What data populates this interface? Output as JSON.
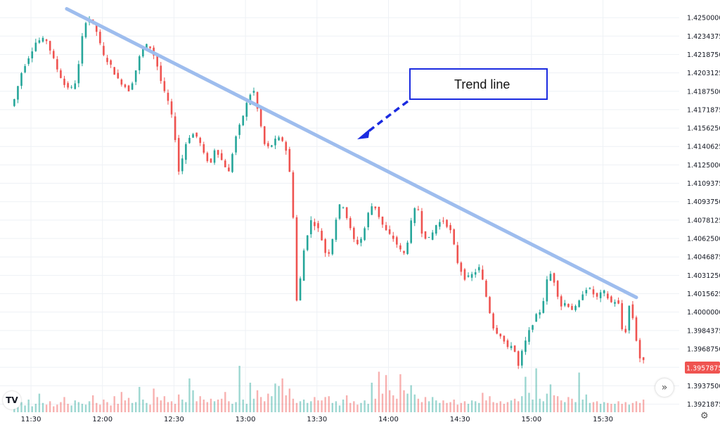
{
  "chart_data": {
    "type": "candlestick",
    "title": "",
    "annotation": {
      "label": "Trend line",
      "line_from": [
        "11:45",
        1.42575
      ],
      "line_to": [
        "15:44",
        1.40125
      ]
    },
    "colors": {
      "up": "#26a69a",
      "down": "#ef5350",
      "trendline": "#9ebdee",
      "annotation_border": "#1b2be0",
      "arrow": "#1b2be0",
      "grid": "#eef1f5",
      "price_badge": "#ef5350"
    },
    "x_axis": {
      "ticks": [
        "11:30",
        "12:00",
        "12:30",
        "13:00",
        "13:30",
        "14:00",
        "14:30",
        "15:00",
        "15:30"
      ]
    },
    "y_axis": {
      "ticks": [
        "1.4250000",
        "1.4234375",
        "1.4218750",
        "1.4203125",
        "1.4187500",
        "1.4171875",
        "1.4156250",
        "1.4140625",
        "1.4125000",
        "1.4109375",
        "1.4093750",
        "1.4078125",
        "1.4062500",
        "1.4046875",
        "1.4031250",
        "1.4015625",
        "1.4000000",
        "1.3984375",
        "1.3968750",
        "1.3953125",
        "1.3937500",
        "1.3921875"
      ],
      "range": [
        1.3915,
        1.4265
      ]
    },
    "last_price": "1.3957875",
    "x_range_minutes": [
      677,
      962
    ],
    "trend_segments": [
      [
        "11:23",
        1.4175
      ],
      [
        "11:27",
        1.4205
      ],
      [
        "11:33",
        1.423
      ],
      [
        "11:37",
        1.4232
      ],
      [
        "11:42",
        1.4205
      ],
      [
        "11:45",
        1.4192
      ],
      [
        "11:48",
        1.419
      ],
      [
        "11:50",
        1.4198
      ],
      [
        "11:53",
        1.4245
      ],
      [
        "11:55",
        1.425
      ],
      [
        "11:58",
        1.424
      ],
      [
        "12:01",
        1.4218
      ],
      [
        "12:04",
        1.421
      ],
      [
        "12:07",
        1.4198
      ],
      [
        "12:10",
        1.4192
      ],
      [
        "12:12",
        1.4188
      ],
      [
        "12:14",
        1.42
      ],
      [
        "12:17",
        1.4222
      ],
      [
        "12:20",
        1.4228
      ],
      [
        "12:23",
        1.4215
      ],
      [
        "12:26",
        1.419
      ],
      [
        "12:29",
        1.4175
      ],
      [
        "12:31",
        1.4152
      ],
      [
        "12:33",
        1.4115
      ],
      [
        "12:35",
        1.414
      ],
      [
        "12:38",
        1.4152
      ],
      [
        "12:41",
        1.4148
      ],
      [
        "12:43",
        1.4135
      ],
      [
        "12:46",
        1.4125
      ],
      [
        "12:48",
        1.414
      ],
      [
        "12:51",
        1.4128
      ],
      [
        "12:54",
        1.4118
      ],
      [
        "12:56",
        1.4145
      ],
      [
        "12:59",
        1.4162
      ],
      [
        "13:02",
        1.4182
      ],
      [
        "13:04",
        1.419
      ],
      [
        "13:06",
        1.417
      ],
      [
        "13:09",
        1.414
      ],
      [
        "13:11",
        1.414
      ],
      [
        "13:14",
        1.4148
      ],
      [
        "13:17",
        1.4145
      ],
      [
        "13:19",
        1.4125
      ],
      [
        "13:21",
        1.4075
      ],
      [
        "13:22",
        1.4008
      ],
      [
        "13:23",
        1.4015
      ],
      [
        "13:25",
        1.405
      ],
      [
        "13:28",
        1.4078
      ],
      [
        "13:31",
        1.4072
      ],
      [
        "13:33",
        1.406
      ],
      [
        "13:35",
        1.4045
      ],
      [
        "13:37",
        1.406
      ],
      [
        "13:39",
        1.4082
      ],
      [
        "13:41",
        1.4095
      ],
      [
        "13:43",
        1.4082
      ],
      [
        "13:46",
        1.4062
      ],
      [
        "13:48",
        1.4058
      ],
      [
        "13:50",
        1.4065
      ],
      [
        "13:53",
        1.409
      ],
      [
        "13:55",
        1.409
      ],
      [
        "13:58",
        1.4075
      ],
      [
        "14:00",
        1.4068
      ],
      [
        "14:03",
        1.4062
      ],
      [
        "14:05",
        1.4055
      ],
      [
        "14:07",
        1.4048
      ],
      [
        "14:09",
        1.4062
      ],
      [
        "14:11",
        1.4085
      ],
      [
        "14:13",
        1.409
      ],
      [
        "14:15",
        1.4065
      ],
      [
        "14:18",
        1.4062
      ],
      [
        "14:21",
        1.4075
      ],
      [
        "14:24",
        1.4078
      ],
      [
        "14:27",
        1.4068
      ],
      [
        "14:30",
        1.404
      ],
      [
        "14:33",
        1.4028
      ],
      [
        "14:36",
        1.4032
      ],
      [
        "14:39",
        1.4038
      ],
      [
        "14:41",
        1.402
      ],
      [
        "14:43",
        1.4002
      ],
      [
        "14:45",
        1.3985
      ],
      [
        "14:48",
        1.398
      ],
      [
        "14:51",
        1.3968
      ],
      [
        "14:53",
        1.3975
      ],
      [
        "14:55",
        1.3952
      ],
      [
        "14:57",
        1.3968
      ],
      [
        "15:00",
        1.3985
      ],
      [
        "15:03",
        1.3998
      ],
      [
        "15:05",
        1.4002
      ],
      [
        "15:08",
        1.4035
      ],
      [
        "15:10",
        1.4028
      ],
      [
        "15:13",
        1.4005
      ],
      [
        "15:15",
        1.4008
      ],
      [
        "15:18",
        1.4002
      ],
      [
        "15:20",
        1.4005
      ],
      [
        "15:23",
        1.402
      ],
      [
        "15:25",
        1.402
      ],
      [
        "15:28",
        1.4012
      ],
      [
        "15:31",
        1.4018
      ],
      [
        "15:34",
        1.4008
      ],
      [
        "15:37",
        1.401
      ],
      [
        "15:39",
        1.3982
      ],
      [
        "15:41",
        1.3985
      ],
      [
        "15:42",
        1.4012
      ],
      [
        "15:44",
        1.3985
      ],
      [
        "15:46",
        1.3962
      ],
      [
        "15:47",
        1.3958
      ]
    ],
    "volume": [
      1,
      0.6,
      1.2,
      0.8,
      1.5,
      0.7,
      1,
      2.2,
      1.1,
      0.9,
      1.3,
      0.7,
      0.9,
      1.2,
      1.8,
      1,
      0.8,
      1.4,
      1.2,
      1,
      0.9,
      1.3,
      2,
      1.1,
      0.9,
      1.5,
      1.2,
      0.8,
      1.9,
      1,
      2.4,
      1.4,
      1.7,
      1.1,
      1.2,
      3,
      1.5,
      1.1,
      0.9,
      2.8,
      1.8,
      1.4,
      1.9,
      1.2,
      1.3,
      1,
      2.1,
      1.5,
      1.2,
      4,
      2.6,
      1.3,
      1.9,
      1.5,
      1.2,
      1.6,
      1.3,
      1.5,
      1.6,
      2.4,
      1.3,
      1,
      1.2,
      5.5,
      1.5,
      1,
      3.5,
      1.6,
      2.6,
      1.8,
      1.3,
      2.2,
      1.9,
      3.4,
      3.1,
      4,
      2,
      2.8,
      1.6,
      1.1,
      1.3,
      1.5,
      1.1,
      1.3,
      1.8,
      1.4,
      1.4,
      1.8,
      1.9,
      1.1,
      1.3,
      0.8,
      1.5,
      2,
      1.1,
      1.3,
      0.9,
      1.1,
      1.4,
      1,
      3.5,
      1.6,
      4.8,
      2.2,
      4.4,
      2.6,
      2,
      1.6,
      4.5,
      2.6,
      2.2,
      3.2,
      2.1,
      1.6,
      1.2,
      1.8,
      1.3,
      1.8,
      1.4,
      1.1,
      1.4,
      1.1,
      1.2,
      1.5,
      0.9,
      1.1,
      1.3,
      1,
      1.4,
      1.3,
      1.1,
      2.3,
      1.4,
      1.9,
      1.2,
      1.1,
      1.3,
      1,
      1.2,
      1.4,
      1.6,
      1.3,
      1.9,
      4.2,
      2.3,
      1.5,
      5.2,
      1.6,
      1.3,
      2.2,
      3.3,
      2,
      1.9,
      1.4,
      1.2,
      1.8,
      1.6,
      1.2,
      4.7,
      1.5,
      2.1,
      1.1,
      1.2,
      1.3,
      1,
      1.2,
      1.1,
      1,
      1,
      1.3,
      1,
      1.2,
      0.9,
      1.1,
      1.3,
      1.1,
      1.5,
      1.3,
      1.1,
      1.6,
      1.3,
      1.2,
      2.2,
      1.5,
      1.3
    ]
  }
}
